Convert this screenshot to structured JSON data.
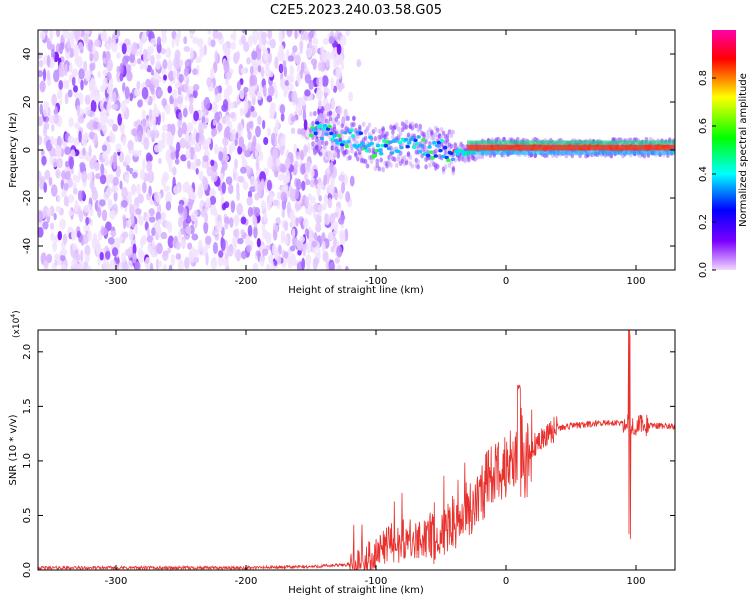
{
  "title": "C2E5.2023.240.03.58.G05",
  "colors": {
    "spectrum_low": "#7a2cff",
    "spectrum_faint": "#c9a6ff",
    "snr_line": "#e8302c",
    "colorbar": [
      "#f2d6ff",
      "#7b00ff",
      "#0000ff",
      "#00ffff",
      "#00ff00",
      "#ffff00",
      "#ff0000",
      "#ff00aa"
    ]
  },
  "chart_data": [
    {
      "type": "heatmap",
      "title": "",
      "xlabel": "Height of straight line (km)",
      "ylabel": "Frequency (Hz)",
      "xlim": [
        -360,
        130
      ],
      "ylim": [
        -50,
        50
      ],
      "xticks": [
        "-300",
        "-200",
        "-100",
        "0",
        "100"
      ],
      "yticks": [
        "40",
        "20",
        "0",
        "-20",
        "-40"
      ],
      "grid": false,
      "noise_region_x": [
        -360,
        -125
      ],
      "signal_track": {
        "x": [
          -150,
          -140,
          -130,
          -120,
          -110,
          -100,
          -90,
          -80,
          -70,
          -60,
          -50,
          -40,
          -30,
          -20,
          -10,
          0,
          20,
          50,
          90,
          130
        ],
        "y": [
          8,
          7,
          6,
          5,
          3,
          0,
          1,
          3,
          2,
          1,
          0,
          -1,
          -1,
          0,
          1,
          1,
          1,
          1,
          1,
          1
        ]
      },
      "colorbar": {
        "label": "Normalized spectral amplitude",
        "range": [
          0.0,
          1.0
        ],
        "ticks": [
          "0.0",
          "0.2",
          "0.4",
          "0.6",
          "0.8"
        ]
      }
    },
    {
      "type": "line",
      "title": "",
      "xlabel": "Height of straight line (km)",
      "ylabel": "SNR (10 * v/v)",
      "y_multiplier": "(x10",
      "y_multiplier_exp": "4",
      "y_multiplier_close": ")",
      "xlim": [
        -360,
        130
      ],
      "ylim": [
        0,
        2.2
      ],
      "xticks": [
        "-300",
        "-200",
        "-100",
        "0",
        "100"
      ],
      "yticks": [
        "0.0",
        "0.5",
        "1.0",
        "1.5",
        "2.0"
      ],
      "grid": false,
      "series": [
        {
          "x": [
            -360,
            -300,
            -200,
            -150,
            -120,
            -110,
            -100,
            -95,
            -90,
            -85,
            -80,
            -75,
            -70,
            -65,
            -60,
            -55,
            -50,
            -45,
            -40,
            -35,
            -30,
            -25,
            -20,
            -15,
            -10,
            -5,
            0,
            5,
            10,
            15,
            20,
            25,
            30,
            40,
            50,
            60,
            70,
            80,
            90,
            95,
            100,
            110,
            120,
            130
          ],
          "y": [
            0.02,
            0.02,
            0.02,
            0.03,
            0.05,
            0.1,
            0.15,
            0.2,
            0.25,
            0.2,
            0.3,
            0.28,
            0.22,
            0.3,
            0.35,
            0.25,
            0.3,
            0.4,
            0.45,
            0.5,
            0.55,
            0.6,
            0.7,
            0.8,
            0.85,
            0.9,
            1.0,
            1.05,
            0.95,
            1.0,
            1.1,
            1.2,
            1.25,
            1.3,
            1.32,
            1.33,
            1.34,
            1.35,
            1.35,
            1.36,
            1.33,
            1.32,
            1.32,
            1.32
          ]
        }
      ]
    }
  ]
}
